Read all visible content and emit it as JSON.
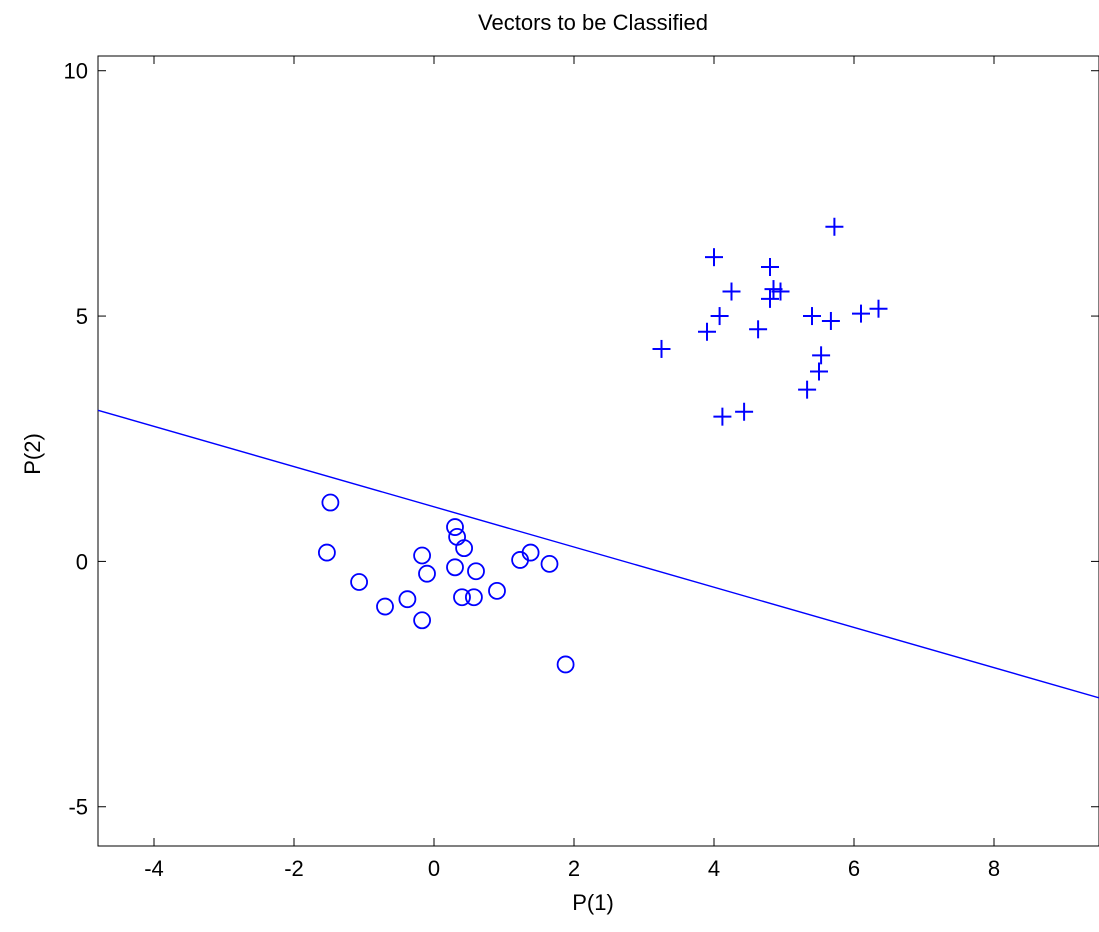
{
  "chart_data": {
    "type": "scatter",
    "title": "Vectors to be Classified",
    "xlabel": "P(1)",
    "ylabel": "P(2)",
    "xlim": [
      -4.8,
      9.5
    ],
    "ylim": [
      -5.8,
      10.3
    ],
    "x_ticks": [
      -4,
      -2,
      0,
      2,
      4,
      6,
      8
    ],
    "y_ticks": [
      -5,
      0,
      5,
      10
    ],
    "x_tick_labels": [
      "-4",
      "-2",
      "0",
      "2",
      "4",
      "6",
      "8"
    ],
    "y_tick_labels": [
      "-5",
      "0",
      "5",
      "10"
    ],
    "grid": false,
    "color": "#0000ff",
    "series": [
      {
        "marker": "plus",
        "points": [
          {
            "x": 5.72,
            "y": 6.82
          },
          {
            "x": 4.0,
            "y": 6.2
          },
          {
            "x": 4.8,
            "y": 6.0
          },
          {
            "x": 4.25,
            "y": 5.5
          },
          {
            "x": 4.85,
            "y": 5.55
          },
          {
            "x": 4.95,
            "y": 5.5
          },
          {
            "x": 4.8,
            "y": 5.35
          },
          {
            "x": 6.35,
            "y": 5.15
          },
          {
            "x": 6.1,
            "y": 5.05
          },
          {
            "x": 4.08,
            "y": 5.0
          },
          {
            "x": 5.4,
            "y": 5.0
          },
          {
            "x": 5.67,
            "y": 4.9
          },
          {
            "x": 3.9,
            "y": 4.68
          },
          {
            "x": 4.63,
            "y": 4.73
          },
          {
            "x": 3.25,
            "y": 4.33
          },
          {
            "x": 5.53,
            "y": 4.2
          },
          {
            "x": 5.5,
            "y": 3.87
          },
          {
            "x": 5.33,
            "y": 3.5
          },
          {
            "x": 4.43,
            "y": 3.05
          },
          {
            "x": 4.12,
            "y": 2.95
          }
        ]
      },
      {
        "marker": "circle",
        "points": [
          {
            "x": -1.48,
            "y": 1.2
          },
          {
            "x": -1.53,
            "y": 0.18
          },
          {
            "x": -1.07,
            "y": -0.42
          },
          {
            "x": -0.7,
            "y": -0.92
          },
          {
            "x": -0.38,
            "y": -0.77
          },
          {
            "x": -0.17,
            "y": 0.12
          },
          {
            "x": -0.1,
            "y": -0.25
          },
          {
            "x": -0.17,
            "y": -1.2
          },
          {
            "x": 0.3,
            "y": 0.7
          },
          {
            "x": 0.33,
            "y": 0.5
          },
          {
            "x": 0.43,
            "y": 0.27
          },
          {
            "x": 0.3,
            "y": -0.12
          },
          {
            "x": 0.4,
            "y": -0.73
          },
          {
            "x": 0.57,
            "y": -0.73
          },
          {
            "x": 0.6,
            "y": -0.2
          },
          {
            "x": 0.9,
            "y": -0.6
          },
          {
            "x": 1.23,
            "y": 0.03
          },
          {
            "x": 1.38,
            "y": 0.18
          },
          {
            "x": 1.65,
            "y": -0.05
          },
          {
            "x": 1.88,
            "y": -2.1
          }
        ]
      }
    ],
    "decision_line": {
      "points": [
        {
          "x": -4.8,
          "y": 3.08
        },
        {
          "x": 9.5,
          "y": -2.78
        }
      ]
    }
  }
}
